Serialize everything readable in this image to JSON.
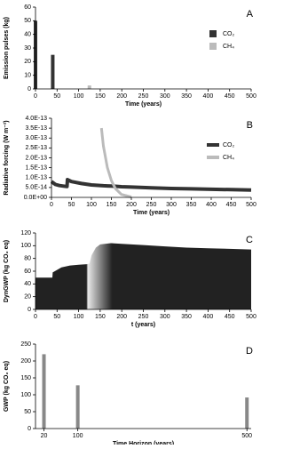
{
  "chart_data": [
    {
      "type": "bar",
      "label": "A",
      "xlabel": "Time (years)",
      "ylabel": "Emission pulses (kg)",
      "xlim": [
        0,
        500
      ],
      "xticks": [
        0,
        50,
        100,
        150,
        200,
        250,
        300,
        350,
        400,
        450,
        500
      ],
      "ylim": [
        0,
        60
      ],
      "yticks": [
        0,
        10,
        20,
        30,
        40,
        50,
        60
      ],
      "x": [
        0,
        40,
        125
      ],
      "series": [
        {
          "name": "CO₂",
          "color": "#333333",
          "values": [
            50,
            25,
            null
          ]
        },
        {
          "name": "CH₄",
          "color": "#bbbbbb",
          "values": [
            null,
            null,
            2.5
          ]
        }
      ],
      "legend": "right"
    },
    {
      "type": "line",
      "label": "B",
      "xlabel": "Time (years)",
      "ylabel": "Radiative forcing (W m⁻²)",
      "xlim": [
        0,
        500
      ],
      "xticks": [
        0,
        50,
        100,
        150,
        200,
        250,
        300,
        350,
        400,
        450,
        500
      ],
      "ylim": [
        0,
        4e-13
      ],
      "yticks": [
        {
          "value": 0,
          "label": "0.0E+00"
        },
        {
          "value": 5e-14,
          "label": "5.0E-14"
        },
        {
          "value": 1e-13,
          "label": "1.0E-13"
        },
        {
          "value": 1.5e-13,
          "label": "1.5E-13"
        },
        {
          "value": 2e-13,
          "label": "2.0E-13"
        },
        {
          "value": 2.5e-13,
          "label": "2.5E-13"
        },
        {
          "value": 3e-13,
          "label": "3.0E-13"
        },
        {
          "value": 3.5e-13,
          "label": "3.5E-13"
        },
        {
          "value": 4e-13,
          "label": "4.0E-13"
        }
      ],
      "x": [
        0,
        10,
        20,
        30,
        39,
        40,
        50,
        75,
        100,
        125,
        130,
        140,
        150,
        160,
        175,
        200,
        250,
        300,
        350,
        400,
        450,
        500
      ],
      "series": [
        {
          "name": "CO₂",
          "color": "#333333",
          "values": [
            8e-14,
            6.5e-14,
            6e-14,
            5.7e-14,
            5.5e-14,
            9e-14,
            8e-14,
            7e-14,
            6.3e-14,
            6e-14,
            5.9e-14,
            5.8e-14,
            5.7e-14,
            5.6e-14,
            5.4e-14,
            5.2e-14,
            4.8e-14,
            4.5e-14,
            4.3e-14,
            4.1e-14,
            3.9e-14,
            3.7e-14
          ]
        },
        {
          "name": "CH₄",
          "color": "#bbbbbb",
          "values": [
            null,
            null,
            null,
            null,
            null,
            null,
            null,
            null,
            null,
            3.5e-13,
            2.6e-13,
            1.5e-13,
            8.5e-14,
            4.5e-14,
            1.5e-14,
            2e-15,
            null,
            null,
            null,
            null,
            null,
            null
          ]
        }
      ],
      "legend": "right"
    },
    {
      "type": "area",
      "label": "C",
      "xlabel": "t (years)",
      "ylabel": "DynGWP (kg CO₂ eq)",
      "xlim": [
        0,
        500
      ],
      "xticks": [
        0,
        50,
        100,
        150,
        200,
        250,
        300,
        350,
        400,
        450,
        500
      ],
      "ylim": [
        0,
        120
      ],
      "yticks": [
        0,
        20,
        40,
        60,
        80,
        100,
        120
      ],
      "x": [
        0,
        39,
        40,
        60,
        80,
        100,
        120,
        125,
        130,
        140,
        150,
        175,
        200,
        250,
        300,
        350,
        400,
        450,
        500
      ],
      "values": [
        50,
        50,
        58,
        66,
        69,
        70,
        71,
        72,
        85,
        97,
        102,
        104,
        103,
        101,
        99,
        97,
        96,
        95,
        94
      ],
      "color": "#222222"
    },
    {
      "type": "bar",
      "label": "D",
      "xlabel": "Time Horizon (years)",
      "ylabel": "GWP (kg CO₂ eq)",
      "xlim": [
        0,
        510
      ],
      "xticks": [
        20,
        100,
        500
      ],
      "ylim": [
        0,
        250
      ],
      "yticks": [
        0,
        50,
        100,
        150,
        200,
        250
      ],
      "x": [
        20,
        100,
        500
      ],
      "series": [
        {
          "color": "#888888",
          "values": [
            220,
            128,
            92
          ]
        }
      ]
    }
  ]
}
